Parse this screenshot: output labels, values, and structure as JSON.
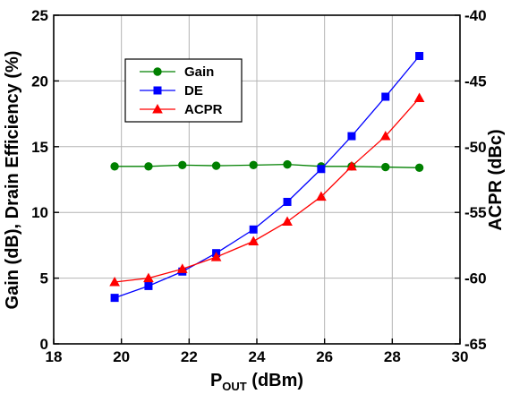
{
  "chart_data": {
    "type": "line",
    "xlabel": {
      "main": "P",
      "sub": "OUT",
      "unit": " (dBm)"
    },
    "ylabel_left": "Gain (dB), Drain Efficiency (%)",
    "ylabel_right": "ACPR (dBc)",
    "xlim": [
      18,
      30
    ],
    "ylim_left": [
      0,
      25
    ],
    "ylim_right": [
      -65,
      -40
    ],
    "x_ticks": [
      18,
      20,
      22,
      24,
      26,
      28,
      30
    ],
    "y_left_ticks": [
      0,
      5,
      10,
      15,
      20,
      25
    ],
    "y_right_ticks": [
      -65,
      -60,
      -55,
      -50,
      -45,
      -40
    ],
    "grid": true,
    "legend_position": "upper-left",
    "series": [
      {
        "name": "Gain",
        "axis": "left",
        "color": "#008000",
        "marker": "circle",
        "x": [
          19.8,
          20.8,
          21.8,
          22.8,
          23.9,
          24.9,
          25.9,
          26.8,
          27.8,
          28.8
        ],
        "y": [
          13.5,
          13.5,
          13.6,
          13.55,
          13.6,
          13.65,
          13.5,
          13.5,
          13.45,
          13.4
        ]
      },
      {
        "name": "DE",
        "axis": "left",
        "color": "#0000ff",
        "marker": "square",
        "x": [
          19.8,
          20.8,
          21.8,
          22.8,
          23.9,
          24.9,
          25.9,
          26.8,
          27.8,
          28.8
        ],
        "y": [
          3.5,
          4.4,
          5.5,
          6.9,
          8.7,
          10.8,
          13.3,
          15.8,
          18.8,
          21.9
        ]
      },
      {
        "name": "ACPR",
        "axis": "right",
        "color": "#ff0000",
        "marker": "triangle",
        "x": [
          19.8,
          20.8,
          21.8,
          22.8,
          23.9,
          24.9,
          25.9,
          26.8,
          27.8,
          28.8
        ],
        "y": [
          -60.3,
          -60.0,
          -59.3,
          -58.4,
          -57.2,
          -55.7,
          -53.8,
          -51.5,
          -49.2,
          -46.3
        ]
      }
    ]
  }
}
